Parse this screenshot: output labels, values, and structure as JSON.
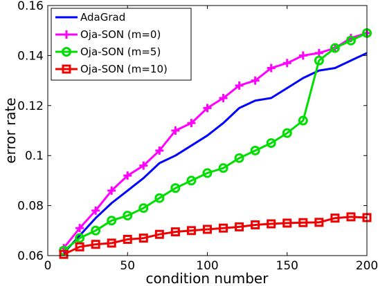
{
  "chart_data": {
    "type": "line",
    "xlabel": "condition number",
    "ylabel": "error rate",
    "xlim": [
      0,
      200
    ],
    "ylim": [
      0.06,
      0.16
    ],
    "x_ticks": [
      0,
      50,
      100,
      150,
      200
    ],
    "x_tick_labels": [
      "0",
      "50",
      "100",
      "150",
      "200"
    ],
    "y_ticks": [
      0.06,
      0.08,
      0.1,
      0.12,
      0.14,
      0.16
    ],
    "y_tick_labels": [
      "0.06",
      "0.08",
      "0.1",
      "0.12",
      "0.14",
      "0.16"
    ],
    "grid": false,
    "legend_position": "top-left",
    "x": [
      10,
      20,
      30,
      40,
      50,
      60,
      70,
      80,
      90,
      100,
      110,
      120,
      130,
      140,
      150,
      160,
      170,
      180,
      190,
      200
    ],
    "series": [
      {
        "name": "AdaGrad",
        "color": "#0000ff",
        "marker": "none",
        "values": [
          0.061,
          0.068,
          0.075,
          0.081,
          0.086,
          0.091,
          0.097,
          0.1,
          0.104,
          0.108,
          0.113,
          0.119,
          0.122,
          0.123,
          0.127,
          0.131,
          0.134,
          0.135,
          0.138,
          0.141
        ]
      },
      {
        "name": "Oja-SON (m=0)",
        "color": "#ff00ff",
        "marker": "plus",
        "values": [
          0.063,
          0.071,
          0.078,
          0.086,
          0.092,
          0.096,
          0.102,
          0.11,
          0.113,
          0.119,
          0.123,
          0.128,
          0.13,
          0.135,
          0.137,
          0.14,
          0.141,
          0.143,
          0.147,
          0.149
        ]
      },
      {
        "name": "Oja-SON (m=5)",
        "color": "#00dd00",
        "marker": "circle",
        "values": [
          0.062,
          0.067,
          0.07,
          0.074,
          0.076,
          0.079,
          0.083,
          0.087,
          0.09,
          0.093,
          0.095,
          0.099,
          0.102,
          0.105,
          0.109,
          0.114,
          0.138,
          0.143,
          0.146,
          0.149
        ]
      },
      {
        "name": "Oja-SON (m=10)",
        "color": "#ee0000",
        "marker": "square",
        "values": [
          0.0605,
          0.0635,
          0.0645,
          0.065,
          0.0665,
          0.067,
          0.0685,
          0.0695,
          0.07,
          0.0705,
          0.071,
          0.0715,
          0.0723,
          0.0727,
          0.073,
          0.0732,
          0.0733,
          0.075,
          0.0755,
          0.0752
        ]
      }
    ]
  }
}
